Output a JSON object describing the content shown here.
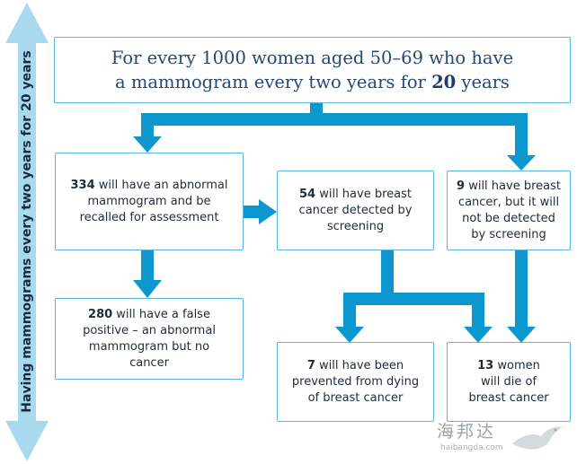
{
  "side_label": "Having mammograms every two years for 20 years",
  "colors": {
    "arrow": "#0d97cf",
    "border": "#5bb6da",
    "side_arrow": "#a9d9ef"
  },
  "boxes": {
    "top": {
      "line1": "For every 1000 women aged 50–69 who have",
      "line2_prefix": "a mammogram every two years for ",
      "years": "20",
      "line2_suffix": " years"
    },
    "abnormal": {
      "number": "334",
      "text": " will have an abnormal mammogram and be recalled for assessment"
    },
    "detected": {
      "number": "54",
      "text": " will have breast cancer detected by screening"
    },
    "undetected": {
      "number": "9",
      "text": " will have breast cancer, but it will not be detected by screening"
    },
    "false_positive": {
      "number": "280",
      "text": " will have a false positive – an abnormal mammogram but no cancer"
    },
    "prevented": {
      "number": "7",
      "text": " will have been prevented from dying of breast cancer"
    },
    "die": {
      "number": "13",
      "text": " women will die of breast cancer"
    }
  },
  "watermark": {
    "cn": "海邦达",
    "en": "haibangda.com"
  }
}
